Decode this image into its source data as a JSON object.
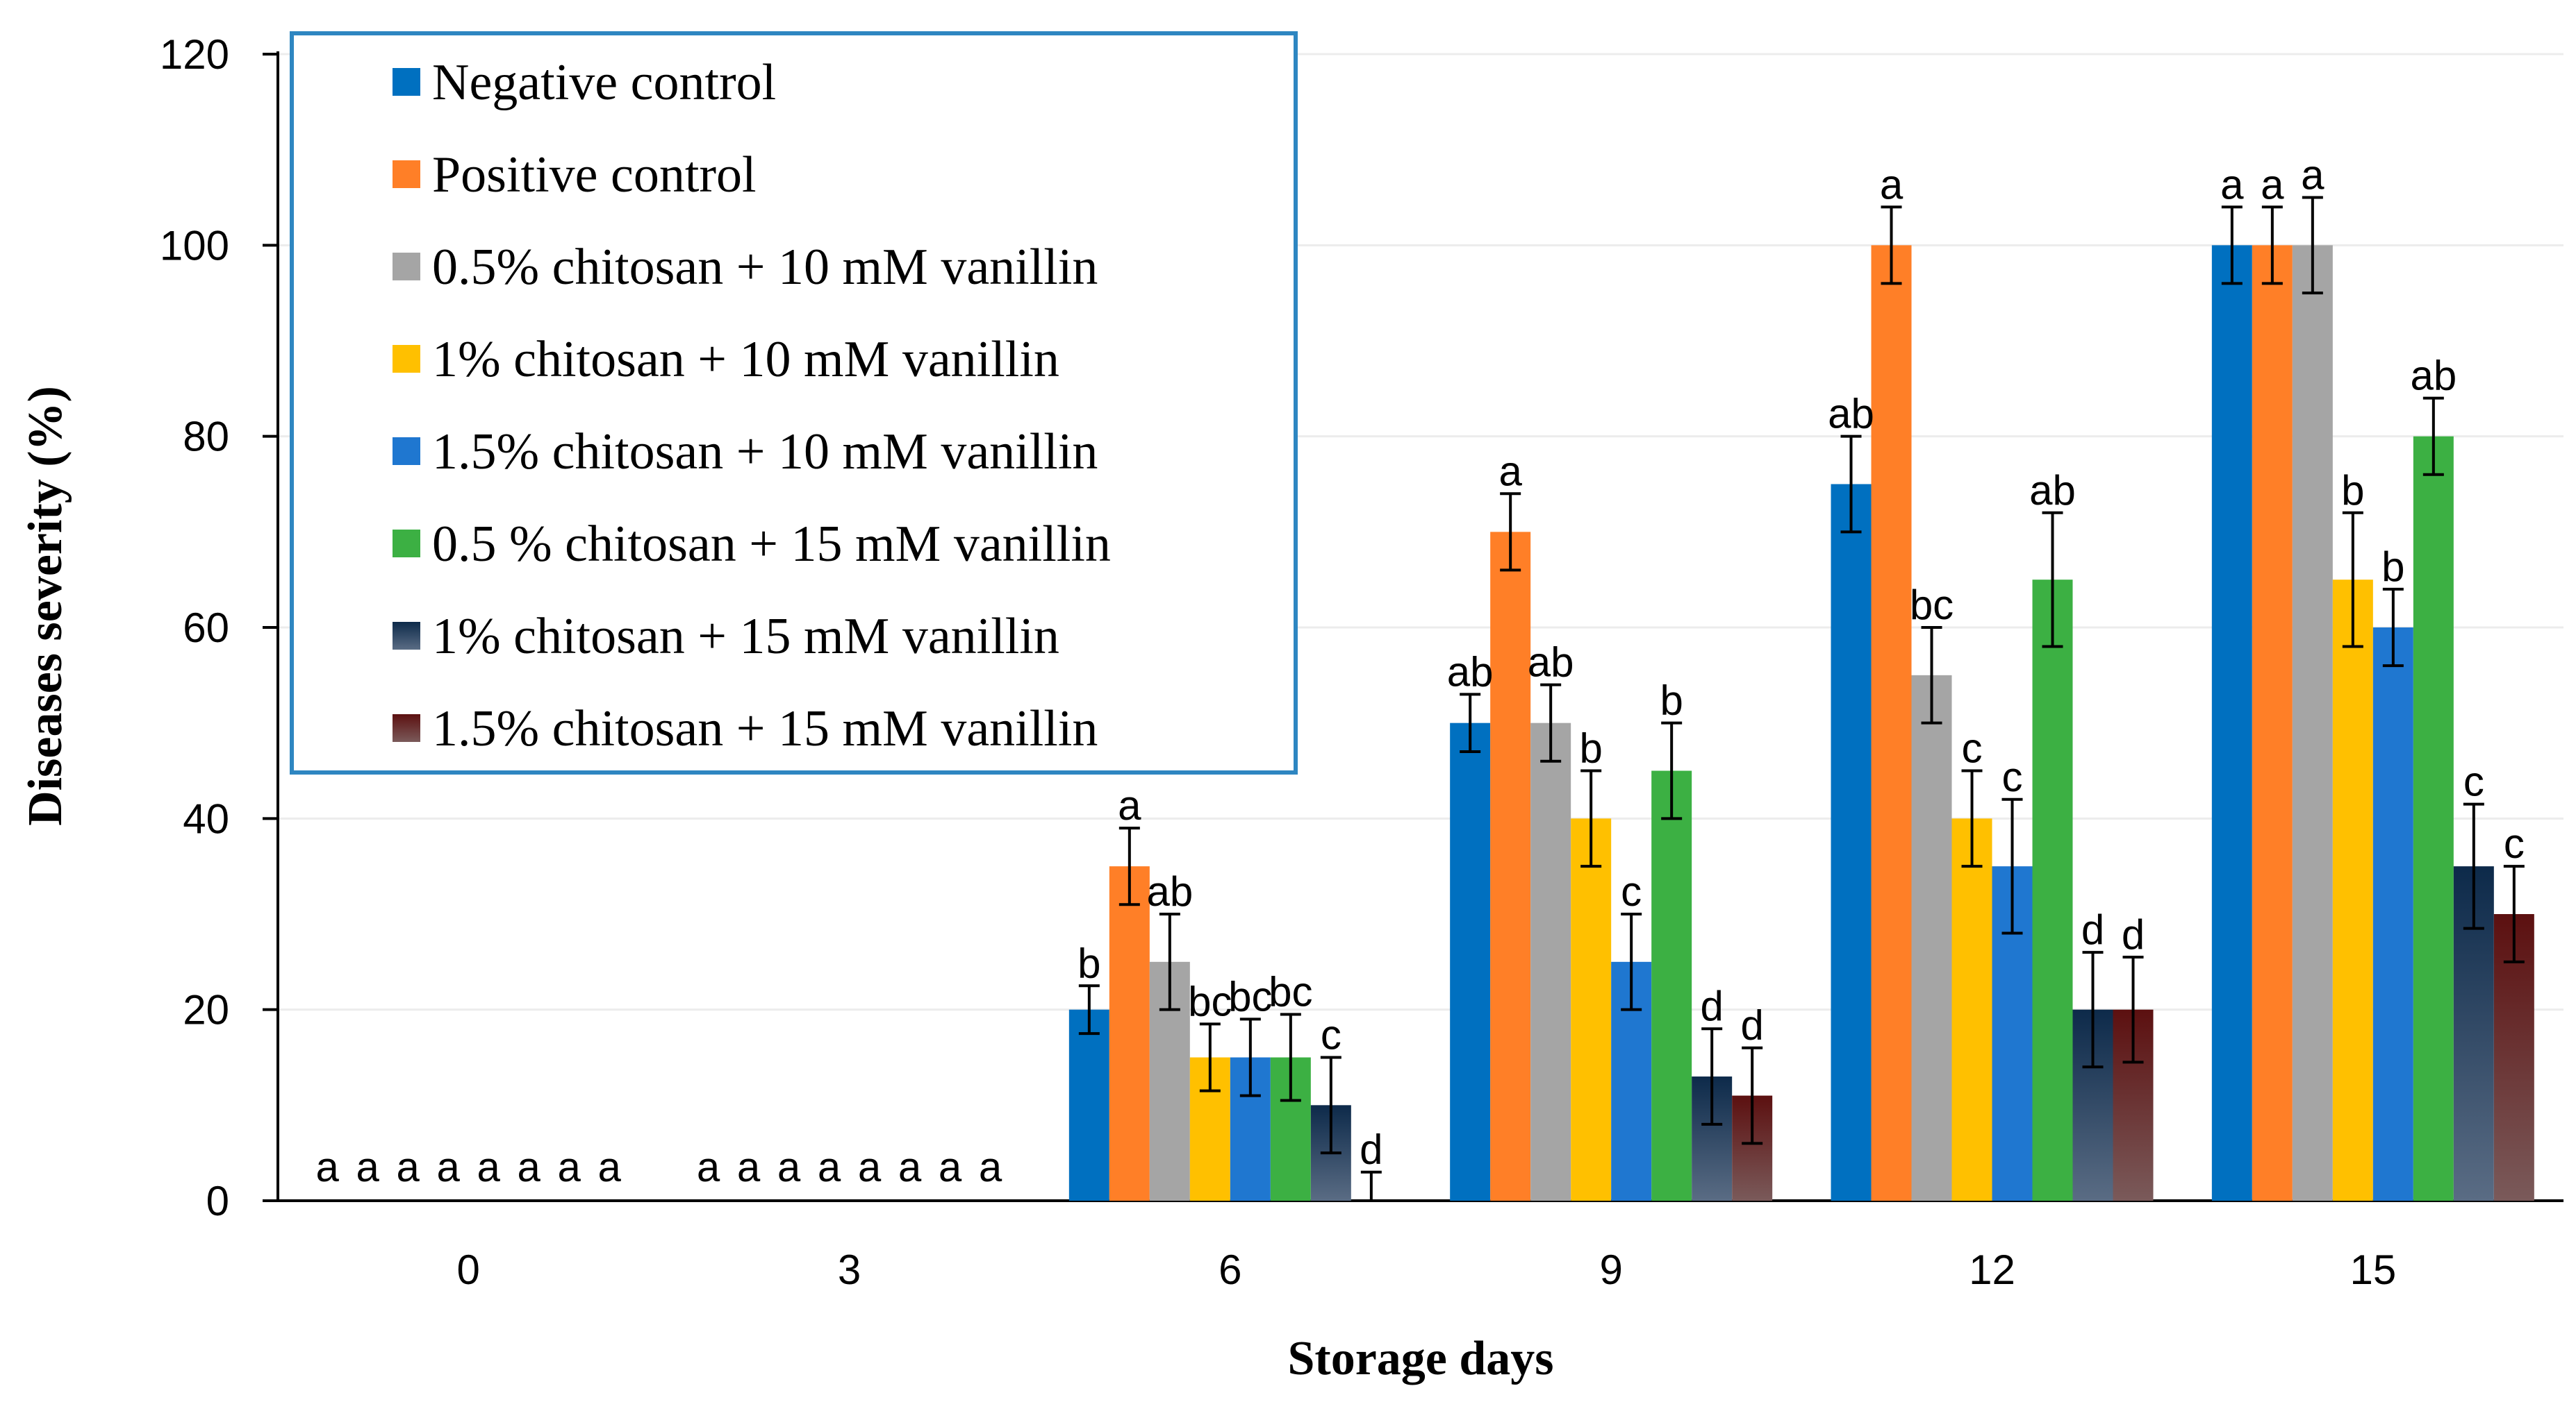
{
  "chart_data": {
    "type": "bar",
    "title": "",
    "xlabel": "Storage days",
    "ylabel": "Diseases severity (%)",
    "ylim": [
      0,
      120
    ],
    "yticks": [
      0,
      20,
      40,
      60,
      80,
      100,
      120
    ],
    "gridlines": true,
    "legend_position": "top-left",
    "categories": [
      "0",
      "3",
      "6",
      "9",
      "12",
      "15"
    ],
    "series": [
      {
        "name": "Negative control",
        "color": "#0070C0",
        "values": [
          0,
          0,
          20,
          50,
          75,
          100
        ],
        "errors": [
          0,
          0,
          2.5,
          3,
          5,
          4
        ],
        "letters": [
          "a",
          "a",
          "b",
          "ab",
          "ab",
          "a"
        ]
      },
      {
        "name": "Positive control",
        "color": "#FF7F27",
        "values": [
          0,
          0,
          35,
          70,
          100,
          100
        ],
        "errors": [
          0,
          0,
          4,
          4,
          4,
          4
        ],
        "letters": [
          "a",
          "a",
          "a",
          "a",
          "a",
          "a"
        ]
      },
      {
        "name": "0.5% chitosan + 10 mM vanillin",
        "color": "#A5A5A5",
        "values": [
          0,
          0,
          25,
          50,
          55,
          100
        ],
        "errors": [
          0,
          0,
          5,
          4,
          5,
          5
        ],
        "letters": [
          "a",
          "a",
          "ab",
          "ab",
          "bc",
          "a"
        ]
      },
      {
        "name": "1% chitosan + 10 mM vanillin",
        "color": "#FFC000",
        "values": [
          0,
          0,
          15,
          40,
          40,
          65
        ],
        "errors": [
          0,
          0,
          3.5,
          5,
          5,
          7
        ],
        "letters": [
          "a",
          "a",
          "bc",
          "b",
          "c",
          "b"
        ]
      },
      {
        "name": "1.5% chitosan + 10 mM vanillin",
        "color": "#1F77D0",
        "values": [
          0,
          0,
          15,
          25,
          35,
          60
        ],
        "errors": [
          0,
          0,
          4,
          5,
          7,
          4
        ],
        "letters": [
          "a",
          "a",
          "bc",
          "c",
          "c",
          "b"
        ]
      },
      {
        "name": "0.5 % chitosan + 15 mM vanillin",
        "color": "#3CB043",
        "values": [
          0,
          0,
          15,
          45,
          65,
          80
        ],
        "errors": [
          0,
          0,
          4.5,
          5,
          7,
          4
        ],
        "letters": [
          "a",
          "a",
          "bc",
          "b",
          "ab",
          "ab"
        ]
      },
      {
        "name": "1% chitosan + 15 mM vanillin",
        "color": "#0D2A4A",
        "gradient_to": "#5A6C84",
        "values": [
          0,
          0,
          10,
          13,
          20,
          35
        ],
        "errors": [
          0,
          0,
          5,
          5,
          6,
          6.5
        ],
        "letters": [
          "a",
          "a",
          "c",
          "d",
          "d",
          "c"
        ]
      },
      {
        "name": "1.5% chitosan + 15 mM vanillin",
        "color": "#5C1010",
        "gradient_to": "#7A5A5A",
        "values": [
          0,
          0,
          0,
          11,
          20,
          30
        ],
        "errors": [
          0,
          0,
          3,
          5,
          5.5,
          5
        ],
        "letters": [
          "a",
          "a",
          "d",
          "d",
          "d",
          "c"
        ]
      }
    ]
  }
}
